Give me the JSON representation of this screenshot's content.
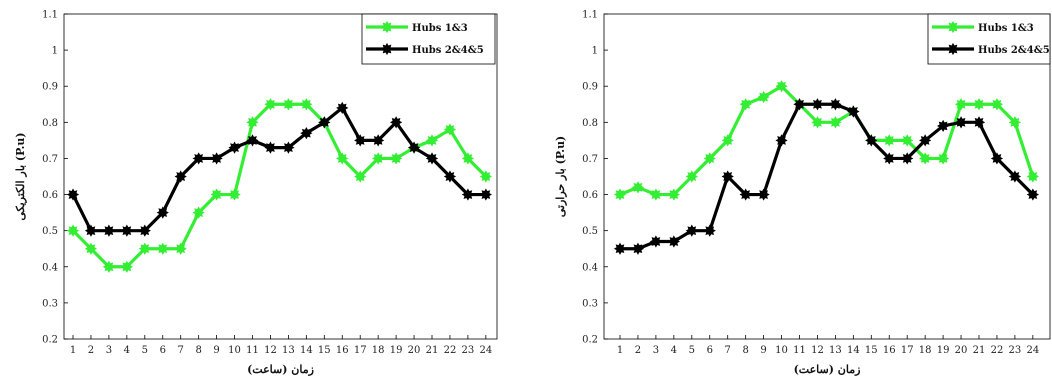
{
  "chart_data": [
    {
      "type": "line",
      "xlabel": "زمان (ساعت)",
      "ylabel": "بار الکتریکی (P.u)",
      "x": [
        1,
        2,
        3,
        4,
        5,
        6,
        7,
        8,
        9,
        10,
        11,
        12,
        13,
        14,
        15,
        16,
        17,
        18,
        19,
        20,
        21,
        22,
        23,
        24
      ],
      "ylim": [
        0.2,
        1.1
      ],
      "yticks": [
        "0.2",
        "0.3",
        "0.4",
        "0.5",
        "0.6",
        "0.7",
        "0.8",
        "0.9",
        "1",
        "1.1"
      ],
      "legend_position": "top-right",
      "grid": false,
      "series": [
        {
          "name": "Hubs 1&3",
          "color": "#33ee33",
          "values": [
            0.5,
            0.45,
            0.4,
            0.4,
            0.45,
            0.45,
            0.45,
            0.55,
            0.6,
            0.6,
            0.8,
            0.85,
            0.85,
            0.85,
            0.8,
            0.7,
            0.65,
            0.7,
            0.7,
            0.73,
            0.75,
            0.78,
            0.7,
            0.65
          ]
        },
        {
          "name": "Hubs 2&4&5",
          "color": "#000000",
          "values": [
            0.6,
            0.5,
            0.5,
            0.5,
            0.5,
            0.55,
            0.65,
            0.7,
            0.7,
            0.73,
            0.75,
            0.73,
            0.73,
            0.77,
            0.8,
            0.84,
            0.75,
            0.75,
            0.8,
            0.73,
            0.7,
            0.65,
            0.6,
            0.6
          ]
        }
      ]
    },
    {
      "type": "line",
      "xlabel": "زمان (ساعت)",
      "ylabel": "بار حرارتی (P.u)",
      "x": [
        1,
        2,
        3,
        4,
        5,
        6,
        7,
        8,
        9,
        10,
        11,
        12,
        13,
        14,
        15,
        16,
        17,
        18,
        19,
        20,
        21,
        22,
        23,
        24
      ],
      "ylim": [
        0.2,
        1.1
      ],
      "yticks": [
        "0.2",
        "0.3",
        "0.4",
        "0.5",
        "0.6",
        "0.7",
        "0.8",
        "0.9",
        "1",
        "1.1"
      ],
      "legend_position": "top-right",
      "grid": false,
      "series": [
        {
          "name": "Hubs 1&3",
          "color": "#33ee33",
          "values": [
            0.6,
            0.62,
            0.6,
            0.6,
            0.65,
            0.7,
            0.75,
            0.85,
            0.87,
            0.9,
            0.85,
            0.8,
            0.8,
            0.83,
            0.75,
            0.75,
            0.75,
            0.7,
            0.7,
            0.85,
            0.85,
            0.85,
            0.8,
            0.65
          ]
        },
        {
          "name": "Hubs 2&4&5",
          "color": "#000000",
          "values": [
            0.45,
            0.45,
            0.47,
            0.47,
            0.5,
            0.5,
            0.65,
            0.6,
            0.6,
            0.75,
            0.85,
            0.85,
            0.85,
            0.83,
            0.75,
            0.7,
            0.7,
            0.75,
            0.79,
            0.8,
            0.8,
            0.7,
            0.65,
            0.6
          ]
        }
      ]
    }
  ]
}
